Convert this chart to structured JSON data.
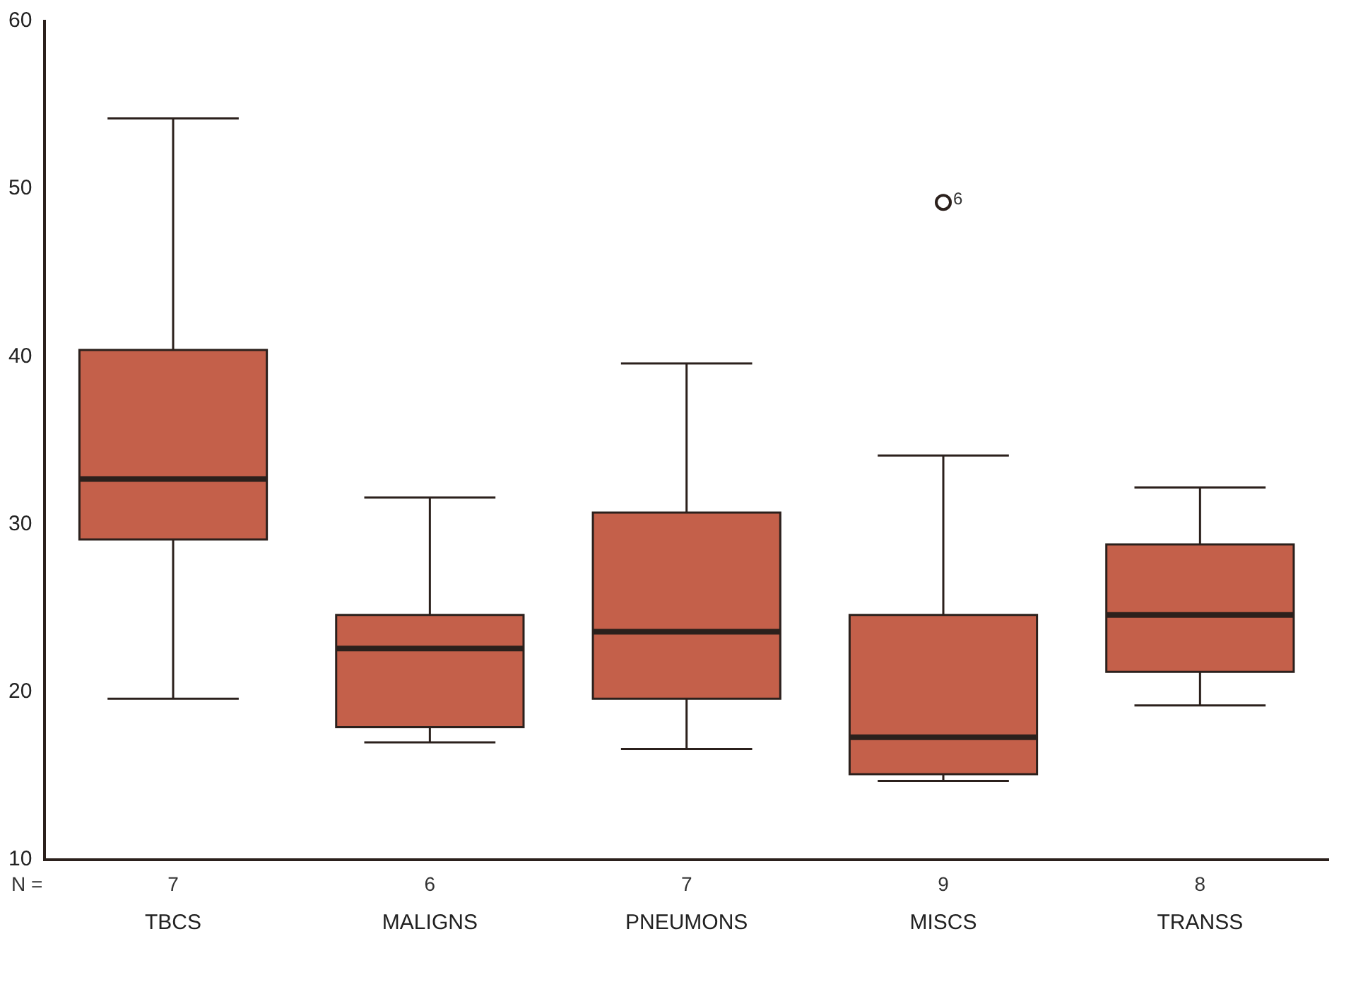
{
  "chart_data": {
    "type": "box",
    "categories": [
      "TBCS",
      "MALIGNS",
      "PNEUMONS",
      "MISCS",
      "TRANSS"
    ],
    "color": "#c4604a",
    "boxes": [
      {
        "low": 19.6,
        "q1": 29.1,
        "median": 32.7,
        "q3": 40.4,
        "high": 54.2
      },
      {
        "low": 17.0,
        "q1": 17.9,
        "median": 22.6,
        "q3": 24.6,
        "high": 31.6
      },
      {
        "low": 16.6,
        "q1": 19.6,
        "median": 23.6,
        "q3": 30.7,
        "high": 39.6
      },
      {
        "low": 14.7,
        "q1": 15.1,
        "median": 17.3,
        "q3": 24.6,
        "high": 34.1,
        "outliers": [
          49.2
        ]
      },
      {
        "low": 19.2,
        "q1": 21.2,
        "median": 24.6,
        "q3": 28.8,
        "high": 32.2
      }
    ],
    "ylim": [
      10,
      60
    ],
    "yticks": [
      10,
      20,
      30,
      40,
      50,
      60
    ],
    "annotations": [
      "N =",
      "7",
      "6",
      "7",
      "9",
      "8",
      "6"
    ]
  }
}
